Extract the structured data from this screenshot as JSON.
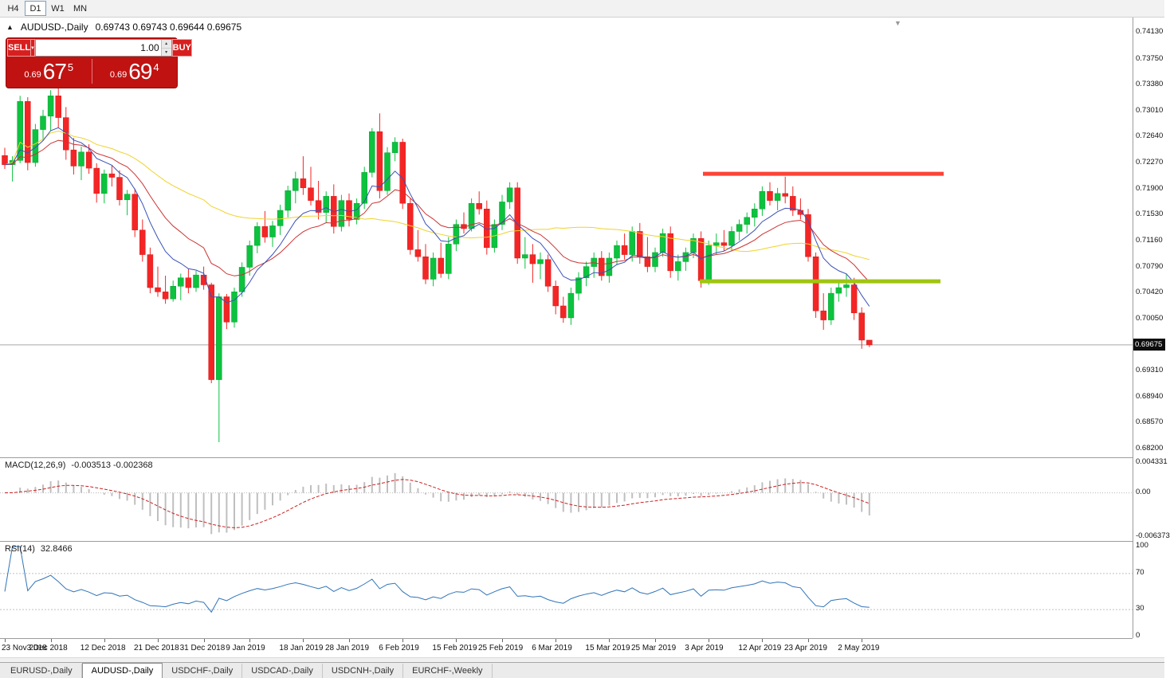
{
  "colors": {
    "up": "#0cc23e",
    "up_border": "#09a233",
    "down": "#f42525",
    "down_border": "#d61d1d",
    "ma_fast": "#3a50b8",
    "ma_mid": "#cc3434",
    "ma_slow": "#efd32c",
    "resistance": "#fb4436",
    "support": "#a0c511",
    "macd_hist": "#bfbfbf",
    "macd_signal": "#cc2020",
    "rsi_line": "#2f74b8",
    "panel_red": "#c11212",
    "current_line": "#a8a8a8"
  },
  "toolbar": {
    "timeframes": [
      {
        "label": "H4",
        "active": false
      },
      {
        "label": "D1",
        "active": true
      },
      {
        "label": "W1",
        "active": false
      },
      {
        "label": "MN",
        "active": false
      }
    ]
  },
  "chart_header": {
    "symbol": "AUDUSD-,Daily",
    "ohlc": "0.69743 0.69743 0.69644 0.69675"
  },
  "trade_panel": {
    "sell_label": "SELL",
    "buy_label": "BUY",
    "volume": "1.00",
    "sell_price": {
      "prefix": "0.69",
      "big": "67",
      "sup": "5"
    },
    "buy_price": {
      "prefix": "0.69",
      "big": "69",
      "sup": "4"
    }
  },
  "price_axis": {
    "labels": [
      "0.74130",
      "0.73750",
      "0.73380",
      "0.73010",
      "0.72640",
      "0.72270",
      "0.71900",
      "0.71530",
      "0.71160",
      "0.70790",
      "0.70420",
      "0.70050",
      "0.69310",
      "0.68940",
      "0.68570",
      "0.68200"
    ],
    "current": "0.69675"
  },
  "macd_panel": {
    "label": "MACD(12,26,9)",
    "values": "-0.003513 -0.002368",
    "axis": [
      "0.004331",
      "0.00",
      "-0.006373"
    ],
    "range": [
      -0.006373,
      0.004331
    ],
    "params": {
      "fast": 12,
      "slow": 26,
      "signal": 9
    }
  },
  "rsi_panel": {
    "label": "RSI(14)",
    "value": "32.8466",
    "axis": [
      "100",
      "70",
      "30",
      "0"
    ],
    "levels": [
      70,
      30
    ],
    "period": 14
  },
  "date_axis": {
    "ticks": [
      {
        "i": 0,
        "label": "23 Nov 2018"
      },
      {
        "i": 6,
        "label": "3 Dec 2018"
      },
      {
        "i": 13,
        "label": "12 Dec 2018"
      },
      {
        "i": 20,
        "label": "21 Dec 2018"
      },
      {
        "i": 26,
        "label": "31 Dec 2018"
      },
      {
        "i": 32,
        "label": "9 Jan 2019"
      },
      {
        "i": 39,
        "label": "18 Jan 2019"
      },
      {
        "i": 45,
        "label": "28 Jan 2019"
      },
      {
        "i": 52,
        "label": "6 Feb 2019"
      },
      {
        "i": 59,
        "label": "15 Feb 2019"
      },
      {
        "i": 65,
        "label": "25 Feb 2019"
      },
      {
        "i": 72,
        "label": "6 Mar 2019"
      },
      {
        "i": 79,
        "label": "15 Mar 2019"
      },
      {
        "i": 85,
        "label": "25 Mar 2019"
      },
      {
        "i": 92,
        "label": "3 Apr 2019"
      },
      {
        "i": 99,
        "label": "12 Apr 2019"
      },
      {
        "i": 105,
        "label": "23 Apr 2019"
      },
      {
        "i": 112,
        "label": "2 May 2019"
      }
    ]
  },
  "tabs": [
    {
      "label": "EURUSD-,Daily",
      "active": false
    },
    {
      "label": "AUDUSD-,Daily",
      "active": true
    },
    {
      "label": "USDCHF-,Daily",
      "active": false
    },
    {
      "label": "USDCAD-,Daily",
      "active": false
    },
    {
      "label": "USDCNH-,Daily",
      "active": false
    },
    {
      "label": "EURCHF-,Weekly",
      "active": false
    }
  ],
  "chart_data": {
    "type": "candlestick",
    "symbol": "AUDUSD",
    "timeframe": "Daily",
    "title": "AUDUSD-,Daily",
    "ohlc_display": {
      "open": "0.69743",
      "high": "0.69743",
      "low": "0.69644",
      "close": "0.69675"
    },
    "y_range": [
      0.682,
      0.7413
    ],
    "current_price": 0.69675,
    "overlays": {
      "ma_fast_period": 8,
      "ma_mid_period": 16,
      "ma_slow_period": 45
    },
    "hlines": [
      {
        "name": "resistance-line",
        "price": 0.7211,
        "x1": 882,
        "x2": 1184,
        "color": "resistance",
        "width": 5
      },
      {
        "name": "support-line",
        "price": 0.7058,
        "x1": 878,
        "x2": 1180,
        "color": "support",
        "width": 5
      }
    ],
    "candles": [
      [
        0.7237,
        0.7248,
        0.7218,
        0.7224
      ],
      [
        0.7224,
        0.7236,
        0.72,
        0.723
      ],
      [
        0.723,
        0.7322,
        0.7226,
        0.7314
      ],
      [
        0.7314,
        0.732,
        0.7216,
        0.7227
      ],
      [
        0.7227,
        0.7282,
        0.7221,
        0.7274
      ],
      [
        0.7274,
        0.7302,
        0.7258,
        0.7293
      ],
      [
        0.7293,
        0.733,
        0.7272,
        0.7322
      ],
      [
        0.7322,
        0.7333,
        0.7277,
        0.7291
      ],
      [
        0.7291,
        0.7306,
        0.7231,
        0.7245
      ],
      [
        0.7245,
        0.7262,
        0.721,
        0.7222
      ],
      [
        0.7222,
        0.725,
        0.7202,
        0.7242
      ],
      [
        0.7242,
        0.7253,
        0.7211,
        0.7219
      ],
      [
        0.7219,
        0.7226,
        0.717,
        0.7183
      ],
      [
        0.7183,
        0.7217,
        0.7169,
        0.7211
      ],
      [
        0.7211,
        0.7223,
        0.7193,
        0.7206
      ],
      [
        0.7206,
        0.7216,
        0.7166,
        0.7174
      ],
      [
        0.7174,
        0.7188,
        0.7152,
        0.7182
      ],
      [
        0.7182,
        0.719,
        0.7121,
        0.7131
      ],
      [
        0.7131,
        0.7146,
        0.7086,
        0.7096
      ],
      [
        0.7096,
        0.7106,
        0.7041,
        0.7049
      ],
      [
        0.7049,
        0.7079,
        0.7036,
        0.7043
      ],
      [
        0.7043,
        0.7066,
        0.7026,
        0.7033
      ],
      [
        0.7033,
        0.7059,
        0.7029,
        0.7051
      ],
      [
        0.7051,
        0.7069,
        0.7031,
        0.7063
      ],
      [
        0.7063,
        0.7076,
        0.7041,
        0.7049
      ],
      [
        0.7049,
        0.7073,
        0.7043,
        0.7067
      ],
      [
        0.7067,
        0.7079,
        0.7046,
        0.7053
      ],
      [
        0.7053,
        0.7056,
        0.6913,
        0.6918
      ],
      [
        0.6918,
        0.7041,
        0.6829,
        0.7036
      ],
      [
        0.7036,
        0.704,
        0.699,
        0.7
      ],
      [
        0.7,
        0.7049,
        0.6992,
        0.7043
      ],
      [
        0.7043,
        0.7085,
        0.7036,
        0.7078
      ],
      [
        0.7078,
        0.7116,
        0.7066,
        0.7109
      ],
      [
        0.7109,
        0.7142,
        0.7098,
        0.7136
      ],
      [
        0.7136,
        0.7158,
        0.7113,
        0.7121
      ],
      [
        0.7121,
        0.7144,
        0.7107,
        0.7137
      ],
      [
        0.7137,
        0.7167,
        0.7124,
        0.7159
      ],
      [
        0.7159,
        0.7194,
        0.7149,
        0.7187
      ],
      [
        0.7187,
        0.7214,
        0.7169,
        0.7204
      ],
      [
        0.7204,
        0.7236,
        0.7181,
        0.7191
      ],
      [
        0.7191,
        0.7221,
        0.7166,
        0.7173
      ],
      [
        0.7173,
        0.7201,
        0.7146,
        0.7156
      ],
      [
        0.7156,
        0.7186,
        0.7141,
        0.7179
      ],
      [
        0.7179,
        0.7196,
        0.7126,
        0.7136
      ],
      [
        0.7136,
        0.7181,
        0.7129,
        0.7173
      ],
      [
        0.7173,
        0.7183,
        0.7136,
        0.7146
      ],
      [
        0.7146,
        0.7176,
        0.7139,
        0.7169
      ],
      [
        0.7169,
        0.7221,
        0.7161,
        0.7213
      ],
      [
        0.7213,
        0.7276,
        0.7206,
        0.7271
      ],
      [
        0.7271,
        0.7297,
        0.7176,
        0.7187
      ],
      [
        0.7187,
        0.7249,
        0.7181,
        0.7241
      ],
      [
        0.7241,
        0.7263,
        0.7229,
        0.7256
      ],
      [
        0.7256,
        0.7261,
        0.7161,
        0.7169
      ],
      [
        0.7169,
        0.7176,
        0.7096,
        0.7103
      ],
      [
        0.7103,
        0.7131,
        0.7086,
        0.7093
      ],
      [
        0.7093,
        0.7111,
        0.7054,
        0.7061
      ],
      [
        0.7061,
        0.7099,
        0.7051,
        0.7091
      ],
      [
        0.7091,
        0.7113,
        0.7063,
        0.7069
      ],
      [
        0.7069,
        0.7121,
        0.7061,
        0.7111
      ],
      [
        0.7111,
        0.7146,
        0.7101,
        0.7139
      ],
      [
        0.7139,
        0.7156,
        0.7126,
        0.7133
      ],
      [
        0.7133,
        0.7176,
        0.7129,
        0.7169
      ],
      [
        0.7169,
        0.7186,
        0.7153,
        0.7161
      ],
      [
        0.7161,
        0.7173,
        0.7096,
        0.7106
      ],
      [
        0.7106,
        0.7146,
        0.7099,
        0.7139
      ],
      [
        0.7139,
        0.7181,
        0.7131,
        0.7171
      ],
      [
        0.7171,
        0.7199,
        0.7161,
        0.7191
      ],
      [
        0.7191,
        0.7199,
        0.7083,
        0.7091
      ],
      [
        0.7091,
        0.7121,
        0.7076,
        0.7096
      ],
      [
        0.7096,
        0.7111,
        0.7056,
        0.7083
      ],
      [
        0.7083,
        0.7099,
        0.7061,
        0.7089
      ],
      [
        0.7089,
        0.7096,
        0.7043,
        0.7051
      ],
      [
        0.7051,
        0.7059,
        0.7011,
        0.7023
      ],
      [
        0.7023,
        0.7036,
        0.6999,
        0.7006
      ],
      [
        0.7006,
        0.7049,
        0.6996,
        0.7041
      ],
      [
        0.7041,
        0.7071,
        0.7031,
        0.7063
      ],
      [
        0.7063,
        0.7086,
        0.7051,
        0.7079
      ],
      [
        0.7079,
        0.7099,
        0.7063,
        0.7091
      ],
      [
        0.7091,
        0.7101,
        0.7059,
        0.7066
      ],
      [
        0.7066,
        0.7099,
        0.7056,
        0.7091
      ],
      [
        0.7091,
        0.7116,
        0.7081,
        0.7109
      ],
      [
        0.7109,
        0.7126,
        0.7089,
        0.7096
      ],
      [
        0.7096,
        0.7136,
        0.7086,
        0.7129
      ],
      [
        0.7129,
        0.7141,
        0.7083,
        0.7093
      ],
      [
        0.7093,
        0.7121,
        0.7071,
        0.7079
      ],
      [
        0.7079,
        0.7106,
        0.7071,
        0.7099
      ],
      [
        0.7099,
        0.7133,
        0.7093,
        0.7126
      ],
      [
        0.7126,
        0.7136,
        0.7063,
        0.7073
      ],
      [
        0.7073,
        0.7096,
        0.7059,
        0.7086
      ],
      [
        0.7086,
        0.7106,
        0.7073,
        0.7099
      ],
      [
        0.7099,
        0.7126,
        0.7091,
        0.7119
      ],
      [
        0.7119,
        0.7129,
        0.7049,
        0.7059
      ],
      [
        0.7059,
        0.7116,
        0.7053,
        0.7109
      ],
      [
        0.7109,
        0.7126,
        0.7096,
        0.7113
      ],
      [
        0.7113,
        0.7131,
        0.7101,
        0.7109
      ],
      [
        0.7109,
        0.7136,
        0.7101,
        0.7129
      ],
      [
        0.7129,
        0.7146,
        0.7116,
        0.7139
      ],
      [
        0.7139,
        0.7156,
        0.7126,
        0.7149
      ],
      [
        0.7149,
        0.7169,
        0.7136,
        0.7161
      ],
      [
        0.7161,
        0.7193,
        0.7151,
        0.7186
      ],
      [
        0.7186,
        0.7199,
        0.7166,
        0.7173
      ],
      [
        0.7173,
        0.7191,
        0.7159,
        0.7183
      ],
      [
        0.7183,
        0.7207,
        0.7169,
        0.7179
      ],
      [
        0.7179,
        0.7193,
        0.7151,
        0.7159
      ],
      [
        0.7159,
        0.7176,
        0.7146,
        0.7153
      ],
      [
        0.7153,
        0.7161,
        0.7086,
        0.7093
      ],
      [
        0.7093,
        0.7099,
        0.7006,
        0.7016
      ],
      [
        0.7016,
        0.7041,
        0.6989,
        0.7003
      ],
      [
        0.7003,
        0.7049,
        0.6996,
        0.7041
      ],
      [
        0.7041,
        0.7059,
        0.7029,
        0.7049
      ],
      [
        0.7049,
        0.7069,
        0.7036,
        0.7053
      ],
      [
        0.7053,
        0.7063,
        0.7003,
        0.7013
      ],
      [
        0.7013,
        0.7021,
        0.6962,
        0.69743
      ],
      [
        0.69743,
        0.69743,
        0.69644,
        0.69675
      ]
    ]
  }
}
